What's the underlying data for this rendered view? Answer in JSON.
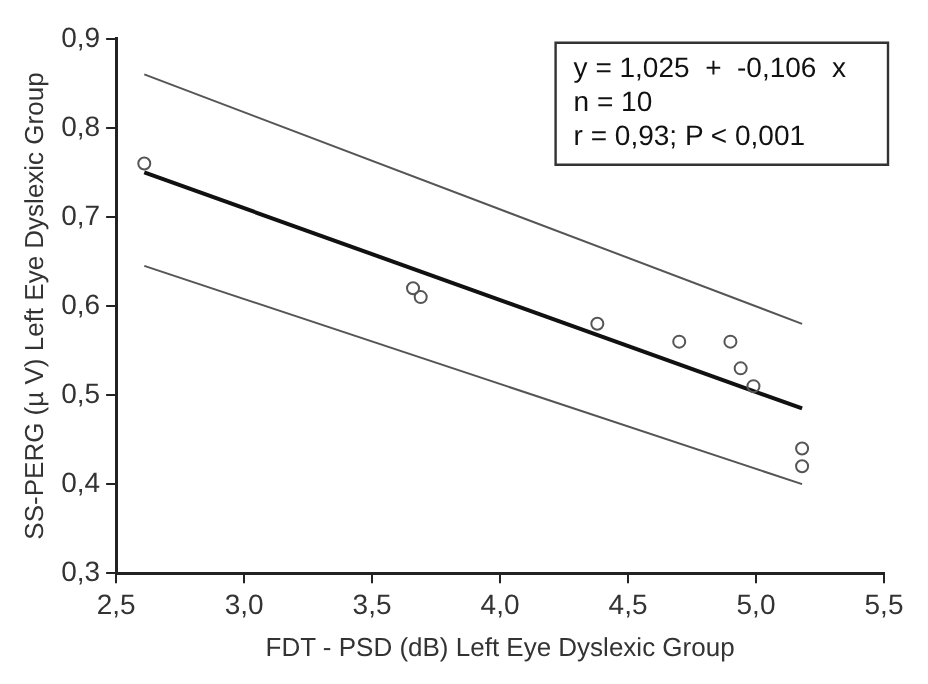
{
  "chart_data": {
    "type": "scatter",
    "xlabel": "FDT - PSD (dB) Left Eye Dyslexic Group",
    "ylabel": "SS-PERG (µ V) Left Eye Dyslexic Group",
    "annotations": [
      "y = 1,025  +  -0,106  x",
      "n = 10",
      "r = 0,93; P < 0,001"
    ],
    "series": [
      {
        "type": "scatter",
        "color": "#555555",
        "marker": "circle",
        "x": [
          2.61,
          3.66,
          3.69,
          4.38,
          4.7,
          4.9,
          4.94,
          4.99,
          5.18,
          5.18
        ],
        "values": [
          0.76,
          0.62,
          0.61,
          0.58,
          0.56,
          0.56,
          0.53,
          0.51,
          0.44,
          0.42
        ]
      },
      {
        "type": "line",
        "color": "#111111",
        "x": [
          2.61,
          5.18
        ],
        "values": [
          0.75,
          0.485
        ]
      },
      {
        "type": "line",
        "color": "#555555",
        "x": [
          2.61,
          5.18
        ],
        "values": [
          0.86,
          0.58
        ]
      },
      {
        "type": "line",
        "color": "#555555",
        "x": [
          2.61,
          5.18
        ],
        "values": [
          0.645,
          0.4
        ]
      }
    ],
    "xlim": [
      2.5,
      5.5
    ],
    "ylim": [
      0.3,
      0.9
    ],
    "xticks": [
      {
        "value": 2.5,
        "label": "2,5"
      },
      {
        "value": 3,
        "label": "3,0"
      },
      {
        "value": 3.5,
        "label": "3,5"
      },
      {
        "value": 4,
        "label": "4,0"
      },
      {
        "value": 4.5,
        "label": "4,5"
      },
      {
        "value": 5,
        "label": "5,0"
      },
      {
        "value": 5.5,
        "label": "5,5"
      }
    ],
    "yticks": [
      {
        "value": 0.3,
        "label": "0,3"
      },
      {
        "value": 0.4,
        "label": "0,4"
      },
      {
        "value": 0.5,
        "label": "0,5"
      },
      {
        "value": 0.6,
        "label": "0,6"
      },
      {
        "value": 0.7,
        "label": "0,7"
      },
      {
        "value": 0.8,
        "label": "0,8"
      },
      {
        "value": 0.9,
        "label": "0,9"
      }
    ],
    "grid": false,
    "legend": false
  }
}
